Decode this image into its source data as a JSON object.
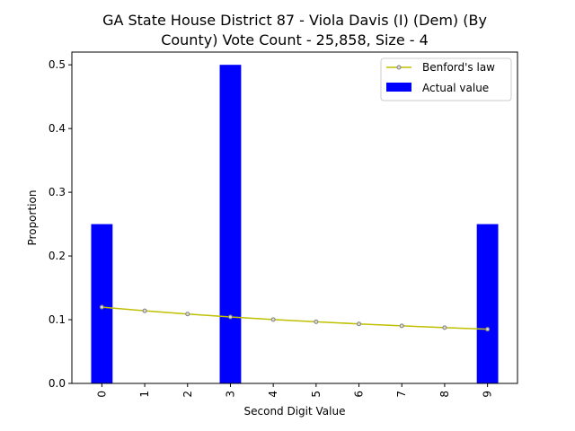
{
  "chart_data": {
    "type": "bar",
    "title_line1": "GA State House District 87 - Viola Davis (I) (Dem) (By",
    "title_line2": "County) Vote Count - 25,858, Size - 4",
    "xlabel": "Second Digit Value",
    "ylabel": "Proportion",
    "categories": [
      "0",
      "1",
      "2",
      "3",
      "4",
      "5",
      "6",
      "7",
      "8",
      "9"
    ],
    "ylim": [
      0,
      0.52
    ],
    "yticks": [
      "0.0",
      "0.1",
      "0.2",
      "0.3",
      "0.4",
      "0.5"
    ],
    "ytick_values": [
      0.0,
      0.1,
      0.2,
      0.3,
      0.4,
      0.5
    ],
    "series": [
      {
        "name": "Actual value",
        "type": "bar",
        "color": "#0000ff",
        "values": [
          0.25,
          0,
          0,
          0.5,
          0,
          0,
          0,
          0,
          0,
          0.25
        ]
      },
      {
        "name": "Benford's law",
        "type": "line",
        "color": "#bfbf00",
        "values": [
          0.1197,
          0.1139,
          0.1088,
          0.1043,
          0.1003,
          0.0967,
          0.0934,
          0.0904,
          0.0876,
          0.085
        ]
      }
    ],
    "legend": {
      "position": "top-right"
    },
    "grid": false
  }
}
